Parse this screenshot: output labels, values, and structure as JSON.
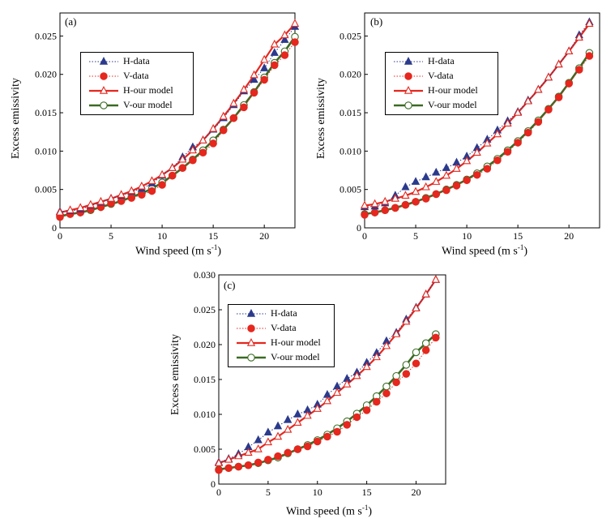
{
  "colors": {
    "h_data": "#2b3a8c",
    "v_data": "#e5271e",
    "h_model": "#e5271e",
    "v_model": "#3a6b23"
  },
  "chart_data": [
    {
      "type": "line",
      "panel": "(a)",
      "xlabel": "Wind speed (m s",
      "xlabel_sup": "-1",
      "xlabel_close": ")",
      "ylabel": "Excess emissivity",
      "xlim": [
        0,
        23
      ],
      "ylim": [
        0,
        0.028
      ],
      "xticks": [
        "0",
        "5",
        "10",
        "15",
        "20"
      ],
      "yticks": [
        "0",
        "0.005",
        "0.010",
        "0.015",
        "0.020",
        "0.025"
      ],
      "legend_placement": "upper-left",
      "legend": [
        "H-data",
        "V-data",
        "H-our model",
        "V-our model"
      ],
      "x": [
        0,
        1,
        2,
        3,
        4,
        5,
        6,
        7,
        8,
        9,
        10,
        11,
        12,
        13,
        14,
        15,
        16,
        17,
        18,
        19,
        20,
        21,
        22,
        23
      ],
      "series": [
        {
          "name": "H-data",
          "values": [
            0.0021,
            0.0022,
            0.0024,
            0.0029,
            0.0033,
            0.0038,
            0.0042,
            0.0047,
            0.0051,
            0.0058,
            0.0068,
            0.0078,
            0.0092,
            0.0105,
            0.0114,
            0.0128,
            0.0143,
            0.016,
            0.0178,
            0.0193,
            0.0208,
            0.0228,
            0.0245,
            0.0262
          ]
        },
        {
          "name": "V-data",
          "values": [
            0.0014,
            0.0018,
            0.002,
            0.0024,
            0.0027,
            0.0032,
            0.0035,
            0.0039,
            0.0043,
            0.0048,
            0.0056,
            0.0068,
            0.0078,
            0.0088,
            0.0098,
            0.011,
            0.0127,
            0.0143,
            0.0157,
            0.0176,
            0.0193,
            0.0212,
            0.0225,
            0.0242
          ]
        },
        {
          "name": "H-our model",
          "values": [
            0.002,
            0.0023,
            0.0026,
            0.003,
            0.0034,
            0.0038,
            0.0043,
            0.0048,
            0.0054,
            0.0061,
            0.0069,
            0.0078,
            0.0089,
            0.0101,
            0.0114,
            0.0129,
            0.0145,
            0.0162,
            0.018,
            0.0199,
            0.0219,
            0.0239,
            0.0251,
            0.0266
          ]
        },
        {
          "name": "V-our model",
          "values": [
            0.0015,
            0.0018,
            0.002,
            0.0023,
            0.0027,
            0.0031,
            0.0035,
            0.004,
            0.0045,
            0.0051,
            0.0059,
            0.0068,
            0.0078,
            0.0089,
            0.0101,
            0.0114,
            0.0128,
            0.0143,
            0.016,
            0.0177,
            0.0196,
            0.0215,
            0.023,
            0.0249
          ]
        }
      ]
    },
    {
      "type": "line",
      "panel": "(b)",
      "xlabel": "Wind speed (m s",
      "xlabel_sup": "-1",
      "xlabel_close": ")",
      "ylabel": "Excess emissivity",
      "xlim": [
        0,
        23
      ],
      "ylim": [
        0,
        0.028
      ],
      "xticks": [
        "0",
        "5",
        "10",
        "15",
        "20"
      ],
      "yticks": [
        "0",
        "0.005",
        "0.010",
        "0.015",
        "0.020",
        "0.025"
      ],
      "legend_placement": "upper-left",
      "legend": [
        "H-data",
        "V-data",
        "H-our model",
        "V-our model"
      ],
      "x": [
        0,
        1,
        2,
        3,
        4,
        5,
        6,
        7,
        8,
        9,
        10,
        11,
        12,
        13,
        14,
        15,
        16,
        17,
        18,
        19,
        20,
        21,
        22
      ],
      "series": [
        {
          "name": "H-data",
          "values": [
            0.0027,
            0.0028,
            0.0032,
            0.0042,
            0.0053,
            0.006,
            0.0066,
            0.0072,
            0.0078,
            0.0085,
            0.0093,
            0.0104,
            0.0115,
            0.0127,
            0.0139,
            0.0151,
            0.0166,
            0.018,
            0.0196,
            0.0213,
            0.023,
            0.0251,
            0.0268
          ]
        },
        {
          "name": "V-data",
          "values": [
            0.0017,
            0.002,
            0.0023,
            0.0026,
            0.003,
            0.0034,
            0.0038,
            0.0044,
            0.0049,
            0.0055,
            0.0062,
            0.0069,
            0.0077,
            0.0088,
            0.0099,
            0.0111,
            0.0124,
            0.0138,
            0.0154,
            0.017,
            0.0188,
            0.0206,
            0.0224
          ]
        },
        {
          "name": "H-our model",
          "values": [
            0.0029,
            0.0031,
            0.0034,
            0.0038,
            0.0042,
            0.0047,
            0.0053,
            0.006,
            0.0068,
            0.0077,
            0.0087,
            0.0098,
            0.011,
            0.0122,
            0.0136,
            0.015,
            0.0165,
            0.018,
            0.0196,
            0.0213,
            0.023,
            0.0248,
            0.0266
          ]
        },
        {
          "name": "V-our model",
          "values": [
            0.0018,
            0.002,
            0.0023,
            0.0026,
            0.003,
            0.0034,
            0.0039,
            0.0044,
            0.005,
            0.0056,
            0.0063,
            0.0071,
            0.008,
            0.009,
            0.0101,
            0.0113,
            0.0126,
            0.014,
            0.0155,
            0.0171,
            0.0189,
            0.0208,
            0.0228
          ]
        }
      ]
    },
    {
      "type": "line",
      "panel": "(c)",
      "xlabel": "Wind speed (m s",
      "xlabel_sup": "-1",
      "xlabel_close": ")",
      "ylabel": "Excess emissivity",
      "xlim": [
        0,
        23
      ],
      "ylim": [
        0,
        0.03
      ],
      "xticks": [
        "0",
        "5",
        "10",
        "15",
        "20"
      ],
      "yticks": [
        "0",
        "0.005",
        "0.010",
        "0.015",
        "0.020",
        "0.025",
        "0.030"
      ],
      "legend_placement": "upper-left",
      "legend": [
        "H-data",
        "V-data",
        "H-our model",
        "V-our model"
      ],
      "x": [
        0,
        1,
        2,
        3,
        4,
        5,
        6,
        7,
        8,
        9,
        10,
        11,
        12,
        13,
        14,
        15,
        16,
        17,
        18,
        19,
        20,
        21,
        22
      ],
      "series": [
        {
          "name": "H-data",
          "values": [
            0.0031,
            0.0036,
            0.0043,
            0.0053,
            0.0063,
            0.0074,
            0.0083,
            0.0092,
            0.01,
            0.0106,
            0.0114,
            0.0128,
            0.014,
            0.0151,
            0.016,
            0.0174,
            0.0188,
            0.0205,
            0.0217,
            0.0236,
            0.0253,
            0.0272,
            0.0293
          ]
        },
        {
          "name": "V-data",
          "values": [
            0.002,
            0.0023,
            0.0025,
            0.0027,
            0.0031,
            0.0035,
            0.004,
            0.0045,
            0.005,
            0.0054,
            0.0061,
            0.0068,
            0.0075,
            0.0085,
            0.0096,
            0.0106,
            0.0118,
            0.013,
            0.0146,
            0.0158,
            0.0173,
            0.0192,
            0.021
          ]
        },
        {
          "name": "H-our model",
          "values": [
            0.003,
            0.0035,
            0.004,
            0.0045,
            0.005,
            0.006,
            0.0068,
            0.0078,
            0.0088,
            0.0098,
            0.0108,
            0.0119,
            0.0131,
            0.0143,
            0.0155,
            0.0168,
            0.0182,
            0.0198,
            0.0215,
            0.0233,
            0.0252,
            0.0272,
            0.0293
          ]
        },
        {
          "name": "V-our model",
          "values": [
            0.0021,
            0.0023,
            0.0025,
            0.0027,
            0.003,
            0.0034,
            0.0038,
            0.0044,
            0.005,
            0.0056,
            0.0063,
            0.0071,
            0.008,
            0.009,
            0.0101,
            0.0113,
            0.0126,
            0.014,
            0.0155,
            0.0171,
            0.0189,
            0.0202,
            0.0215
          ]
        }
      ]
    }
  ]
}
